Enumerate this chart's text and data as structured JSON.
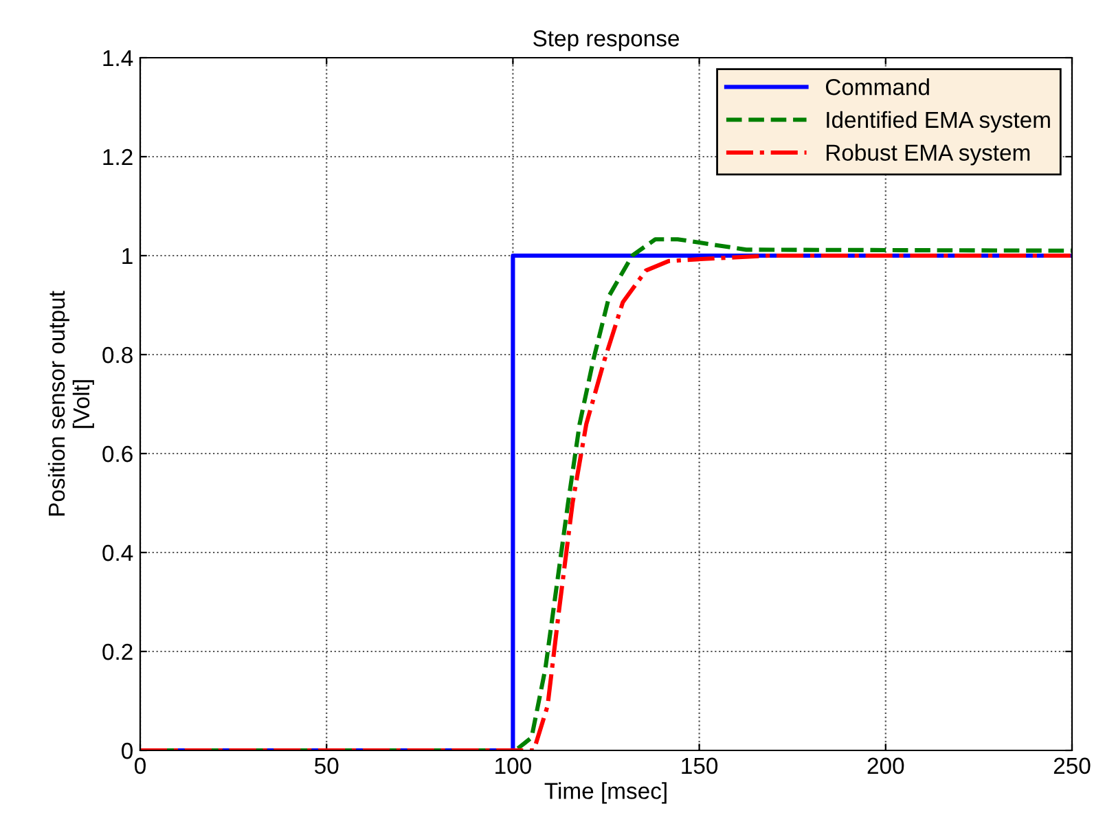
{
  "chart_data": {
    "type": "line",
    "title": "Step response",
    "xlabel": "Time [msec]",
    "ylabel": "Position sensor output\n[Volt]",
    "xlim": [
      0,
      250
    ],
    "ylim": [
      0,
      1.4
    ],
    "xticks": [
      0,
      50,
      100,
      150,
      200,
      250
    ],
    "yticks": [
      0,
      0.2,
      0.4,
      0.6,
      0.8,
      1,
      1.2,
      1.4
    ],
    "grid": true,
    "legend": "top right",
    "series": [
      {
        "name": "Command",
        "color": "#0000ff",
        "line_style": "solid",
        "x": [
          0,
          100,
          100,
          250
        ],
        "values": [
          0,
          0,
          1,
          1
        ]
      },
      {
        "name": "Identified EMA system",
        "color": "#008000",
        "line_style": "dashed",
        "x": [
          0,
          100.7,
          105,
          108.7,
          111.7,
          114.8,
          117.9,
          121.6,
          125.9,
          132,
          138.2,
          144.2,
          150.4,
          162.6,
          250
        ],
        "values": [
          0,
          0,
          0.026,
          0.165,
          0.33,
          0.5,
          0.66,
          0.79,
          0.92,
          1.0,
          1.033,
          1.033,
          1.026,
          1.012,
          1.01
        ]
      },
      {
        "name": "Robust EMA system",
        "color": "#ff0000",
        "line_style": "dashdot",
        "x": [
          0,
          105.6,
          109.3,
          112.4,
          116,
          119.7,
          124.6,
          129.5,
          135.7,
          141.8,
          150.4,
          168.9,
          250
        ],
        "values": [
          0,
          0,
          0.09,
          0.285,
          0.5,
          0.66,
          0.79,
          0.906,
          0.97,
          0.989,
          0.993,
          1.0,
          1.0
        ]
      }
    ]
  }
}
